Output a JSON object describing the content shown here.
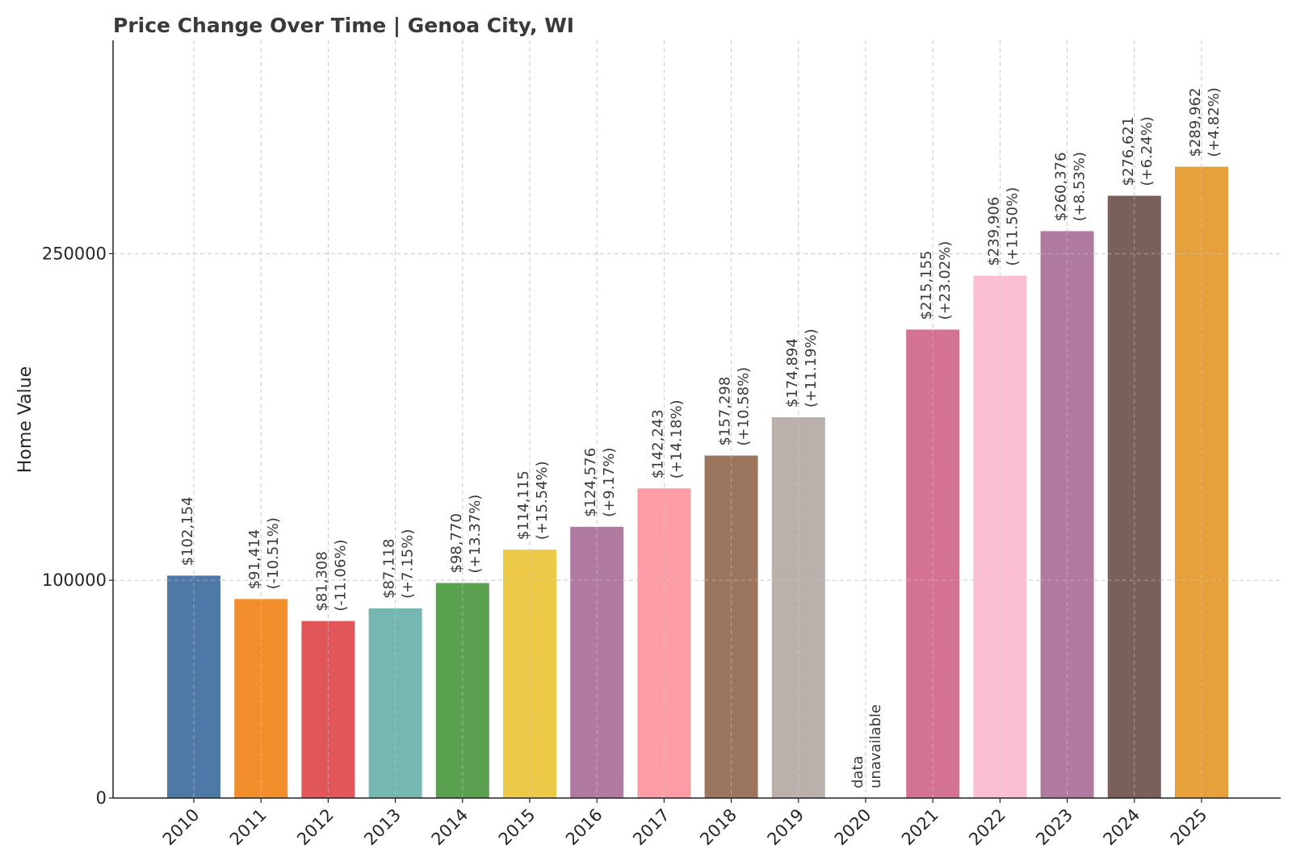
{
  "chart_data": {
    "type": "bar",
    "title": "Price Change Over Time | Genoa City, WI",
    "xlabel": "",
    "ylabel": "Home Value",
    "ylim": [
      0,
      348000
    ],
    "yticks": [
      0,
      100000,
      250000
    ],
    "ytick_labels": [
      "0",
      "100000",
      "250000"
    ],
    "grid": true,
    "categories": [
      "2010",
      "2011",
      "2012",
      "2013",
      "2014",
      "2015",
      "2016",
      "2017",
      "2018",
      "2019",
      "2020",
      "2021",
      "2022",
      "2023",
      "2024",
      "2025"
    ],
    "values": [
      102154,
      91414,
      81308,
      87118,
      98770,
      114115,
      124576,
      142243,
      157298,
      174894,
      null,
      215155,
      239906,
      260376,
      276621,
      289962
    ],
    "value_labels": [
      "$102,154",
      "$91,414",
      "$81,308",
      "$87,118",
      "$98,770",
      "$114,115",
      "$124,576",
      "$142,243",
      "$157,298",
      "$174,894",
      "",
      "$215,155",
      "$239,906",
      "$260,376",
      "$276,621",
      "$289,962"
    ],
    "change_labels": [
      "",
      "(-10.51%)",
      "(-11.06%)",
      "(+7.15%)",
      "(+13.37%)",
      "(+15.54%)",
      "(+9.17%)",
      "(+14.18%)",
      "(+10.58%)",
      "(+11.19%)",
      "",
      "(+23.02%)",
      "(+11.50%)",
      "(+8.53%)",
      "(+6.24%)",
      "(+4.82%)"
    ],
    "missing_label": [
      "data",
      "unavailable"
    ],
    "colors": [
      "#4e79a7",
      "#f28e2b",
      "#e15759",
      "#76b7b2",
      "#59a14f",
      "#edc948",
      "#b07aa1",
      "#ff9da7",
      "#9c755f",
      "#bab0ac",
      "#ffffff",
      "#d37295",
      "#fabfd2",
      "#b07aa1",
      "#79605a",
      "#e6a03c"
    ]
  }
}
